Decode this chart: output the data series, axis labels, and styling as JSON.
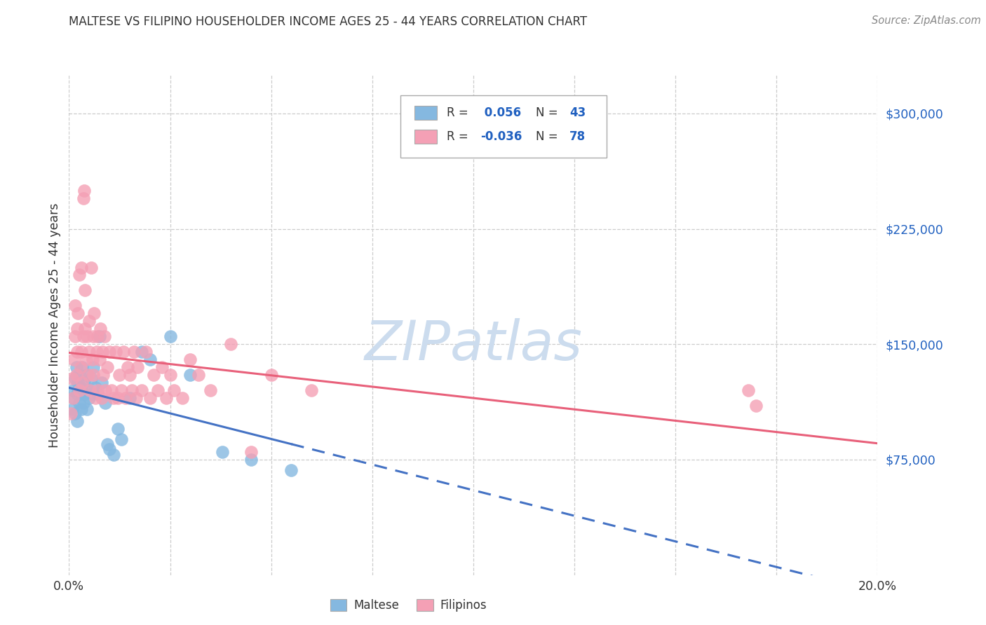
{
  "title": "MALTESE VS FILIPINO HOUSEHOLDER INCOME AGES 25 - 44 YEARS CORRELATION CHART",
  "source": "Source: ZipAtlas.com",
  "ylabel": "Householder Income Ages 25 - 44 years",
  "xlim": [
    0.0,
    0.2
  ],
  "ylim": [
    0,
    325000
  ],
  "yticks": [
    75000,
    150000,
    225000,
    300000
  ],
  "ytick_labels": [
    "$75,000",
    "$150,000",
    "$225,000",
    "$300,000"
  ],
  "xticks": [
    0.0,
    0.025,
    0.05,
    0.075,
    0.1,
    0.125,
    0.15,
    0.175,
    0.2
  ],
  "xtick_labels": [
    "0.0%",
    "",
    "",
    "",
    "",
    "",
    "",
    "",
    "20.0%"
  ],
  "maltese_R": 0.056,
  "maltese_N": 43,
  "filipino_R": -0.036,
  "filipino_N": 78,
  "maltese_color": "#85b8e0",
  "filipino_color": "#f4a0b5",
  "maltese_line_color": "#4472c4",
  "filipino_line_color": "#e8607a",
  "watermark_color": "#ccdcee",
  "legend_color": "#2060c0",
  "maltese_x": [
    0.0008,
    0.001,
    0.0012,
    0.0015,
    0.0015,
    0.0018,
    0.002,
    0.002,
    0.0022,
    0.0025,
    0.0025,
    0.0028,
    0.003,
    0.003,
    0.0032,
    0.0035,
    0.0038,
    0.004,
    0.0042,
    0.0045,
    0.0048,
    0.005,
    0.0055,
    0.0058,
    0.006,
    0.0065,
    0.007,
    0.0075,
    0.008,
    0.009,
    0.0095,
    0.01,
    0.011,
    0.012,
    0.013,
    0.015,
    0.018,
    0.02,
    0.025,
    0.03,
    0.038,
    0.045,
    0.055
  ],
  "maltese_y": [
    108000,
    120000,
    115000,
    128000,
    105000,
    135000,
    118000,
    100000,
    125000,
    112000,
    130000,
    122000,
    108000,
    118000,
    135000,
    112000,
    125000,
    118000,
    130000,
    108000,
    120000,
    115000,
    128000,
    118000,
    135000,
    122000,
    118000,
    155000,
    125000,
    112000,
    85000,
    82000,
    78000,
    95000,
    88000,
    115000,
    145000,
    140000,
    155000,
    130000,
    80000,
    75000,
    68000
  ],
  "filipino_x": [
    0.0005,
    0.0008,
    0.001,
    0.0012,
    0.0015,
    0.0015,
    0.0018,
    0.002,
    0.002,
    0.0022,
    0.0025,
    0.0025,
    0.0028,
    0.003,
    0.003,
    0.0032,
    0.0035,
    0.0035,
    0.0038,
    0.004,
    0.004,
    0.0042,
    0.0045,
    0.0048,
    0.005,
    0.005,
    0.0052,
    0.0055,
    0.0058,
    0.006,
    0.006,
    0.0062,
    0.0065,
    0.0068,
    0.007,
    0.0072,
    0.0075,
    0.0078,
    0.008,
    0.0082,
    0.0085,
    0.0088,
    0.009,
    0.0095,
    0.01,
    0.0105,
    0.011,
    0.0115,
    0.012,
    0.0125,
    0.013,
    0.0135,
    0.014,
    0.0145,
    0.015,
    0.0155,
    0.016,
    0.0165,
    0.017,
    0.018,
    0.019,
    0.02,
    0.021,
    0.022,
    0.023,
    0.024,
    0.025,
    0.026,
    0.028,
    0.03,
    0.032,
    0.035,
    0.04,
    0.045,
    0.05,
    0.06,
    0.168,
    0.17
  ],
  "filipino_y": [
    105000,
    128000,
    115000,
    140000,
    155000,
    175000,
    130000,
    160000,
    145000,
    170000,
    120000,
    195000,
    135000,
    145000,
    200000,
    125000,
    155000,
    245000,
    250000,
    160000,
    185000,
    140000,
    155000,
    130000,
    145000,
    165000,
    120000,
    200000,
    140000,
    155000,
    130000,
    170000,
    115000,
    145000,
    155000,
    120000,
    140000,
    160000,
    115000,
    145000,
    130000,
    155000,
    120000,
    135000,
    145000,
    120000,
    115000,
    145000,
    115000,
    130000,
    120000,
    145000,
    115000,
    135000,
    130000,
    120000,
    145000,
    115000,
    135000,
    120000,
    145000,
    115000,
    130000,
    120000,
    135000,
    115000,
    130000,
    120000,
    115000,
    140000,
    130000,
    120000,
    150000,
    80000,
    130000,
    120000,
    120000,
    110000
  ]
}
